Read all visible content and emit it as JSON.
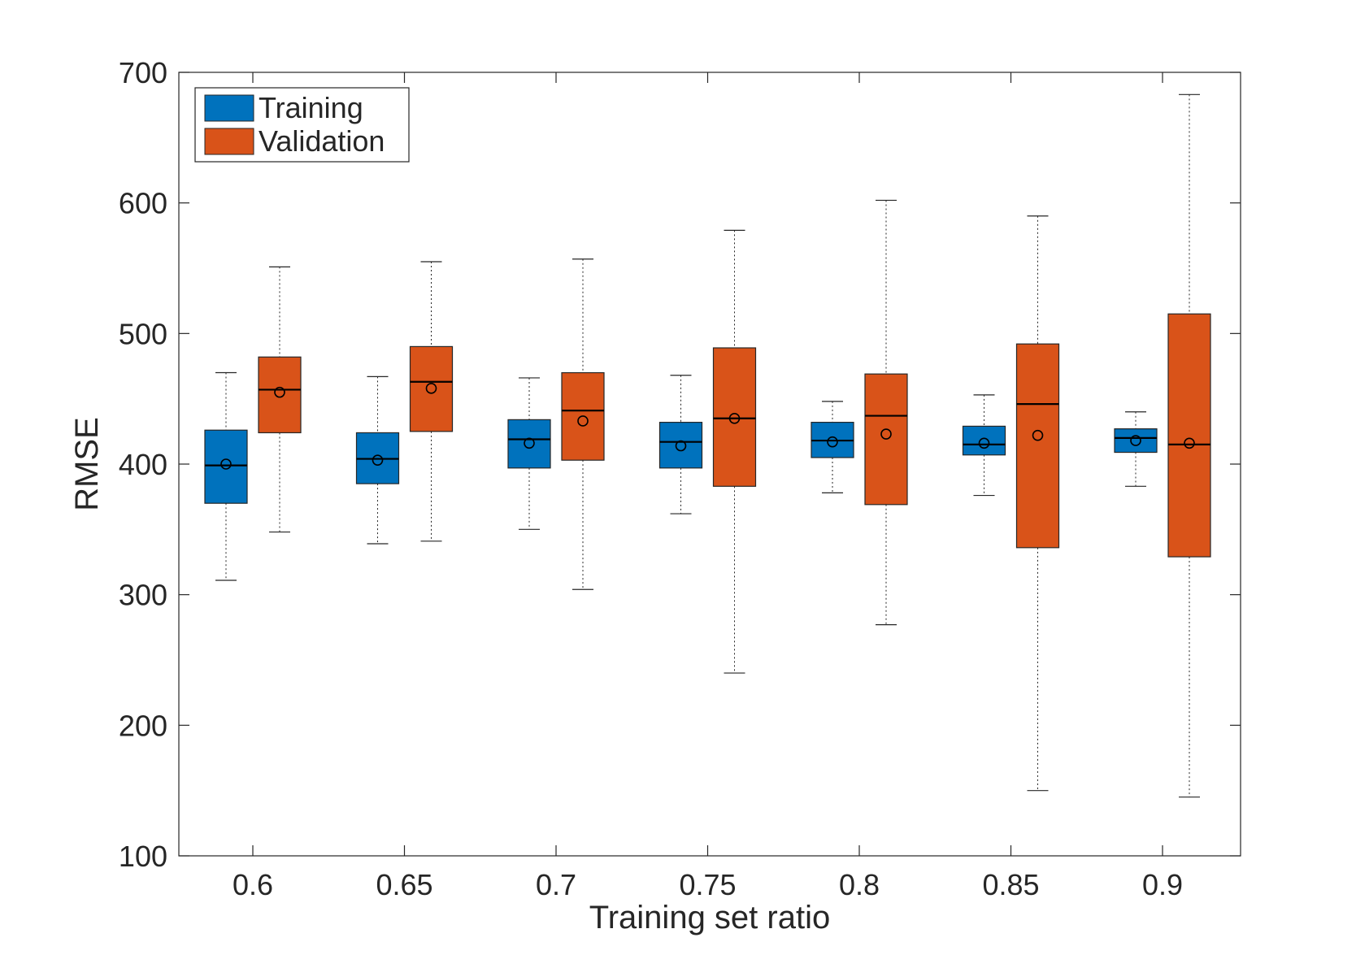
{
  "chart_data": {
    "type": "box",
    "xlabel": "Training set ratio",
    "ylabel": "RMSE",
    "ylim": [
      100,
      700
    ],
    "yticks": [
      100,
      200,
      300,
      400,
      500,
      600,
      700
    ],
    "categories": [
      "0.6",
      "0.65",
      "0.7",
      "0.75",
      "0.8",
      "0.85",
      "0.9"
    ],
    "legend": {
      "placement": "top-left"
    },
    "series": [
      {
        "name": "Training",
        "color": "#0072BD",
        "boxes": [
          {
            "min": 311,
            "q1": 370,
            "median": 399,
            "q3": 426,
            "max": 470,
            "mean": 400
          },
          {
            "min": 339,
            "q1": 385,
            "median": 404,
            "q3": 424,
            "max": 467,
            "mean": 403
          },
          {
            "min": 350,
            "q1": 397,
            "median": 419,
            "q3": 434,
            "max": 466,
            "mean": 416
          },
          {
            "min": 362,
            "q1": 397,
            "median": 417,
            "q3": 432,
            "max": 468,
            "mean": 414
          },
          {
            "min": 378,
            "q1": 405,
            "median": 418,
            "q3": 432,
            "max": 448,
            "mean": 417
          },
          {
            "min": 376,
            "q1": 407,
            "median": 415,
            "q3": 429,
            "max": 453,
            "mean": 416
          },
          {
            "min": 383,
            "q1": 409,
            "median": 420,
            "q3": 427,
            "max": 440,
            "mean": 418
          }
        ]
      },
      {
        "name": "Validation",
        "color": "#D95319",
        "boxes": [
          {
            "min": 348,
            "q1": 424,
            "median": 457,
            "q3": 482,
            "max": 551,
            "mean": 455
          },
          {
            "min": 341,
            "q1": 425,
            "median": 463,
            "q3": 490,
            "max": 555,
            "mean": 458
          },
          {
            "min": 304,
            "q1": 403,
            "median": 441,
            "q3": 470,
            "max": 557,
            "mean": 433
          },
          {
            "min": 240,
            "q1": 383,
            "median": 435,
            "q3": 489,
            "max": 579,
            "mean": 435
          },
          {
            "min": 277,
            "q1": 369,
            "median": 437,
            "q3": 469,
            "max": 602,
            "mean": 423
          },
          {
            "min": 150,
            "q1": 336,
            "median": 446,
            "q3": 492,
            "max": 590,
            "mean": 422
          },
          {
            "min": 145,
            "q1": 329,
            "median": 415,
            "q3": 515,
            "max": 683,
            "mean": 416
          }
        ]
      }
    ]
  }
}
